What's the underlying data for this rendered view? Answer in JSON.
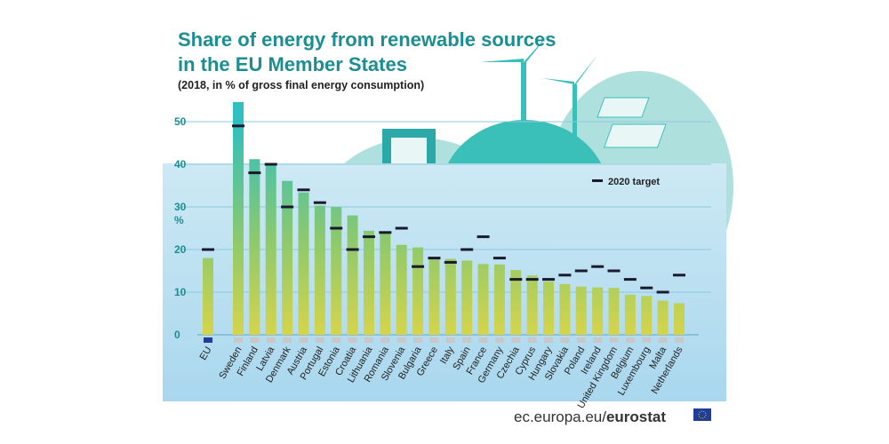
{
  "chart_data": {
    "type": "bar",
    "title": "Share of energy from renewable sources in the EU Member States",
    "title_lines": [
      "Share of energy from renewable sources",
      "in the EU Member States"
    ],
    "subtitle": "(2018, in % of gross final energy consumption)",
    "ylabel": "%",
    "ylim": [
      0,
      55
    ],
    "yticks": [
      0,
      10,
      20,
      30,
      40,
      50
    ],
    "grid": true,
    "legend": {
      "position": "top-right",
      "entries": [
        "2020 target"
      ]
    },
    "categories": [
      "EU",
      "Sweden",
      "Finland",
      "Latvia",
      "Denmark",
      "Austria",
      "Portugal",
      "Estonia",
      "Croatia",
      "Lithuania",
      "Romania",
      "Slovenia",
      "Bulgaria",
      "Greece",
      "Italy",
      "Spain",
      "France",
      "Germany",
      "Czechia",
      "Cyprus",
      "Hungary",
      "Slovakia",
      "Poland",
      "Ireland",
      "United Kingdom",
      "Belgium",
      "Luxembourg",
      "Malta",
      "Netherlands"
    ],
    "series": [
      {
        "name": "2018",
        "values": [
          18.0,
          54.6,
          41.2,
          40.3,
          36.1,
          33.4,
          30.3,
          30.0,
          28.0,
          24.4,
          23.9,
          21.1,
          20.5,
          18.0,
          17.8,
          17.4,
          16.6,
          16.5,
          15.2,
          13.9,
          12.5,
          11.9,
          11.3,
          11.1,
          11.0,
          9.4,
          9.1,
          8.0,
          7.4
        ]
      },
      {
        "name": "2020 target",
        "values": [
          20,
          49,
          38,
          40,
          30,
          34,
          31,
          25,
          20,
          23,
          24,
          25,
          16,
          18,
          17,
          20,
          23,
          18,
          13,
          13,
          13,
          14,
          15,
          16,
          15,
          13,
          11,
          10,
          14
        ]
      }
    ],
    "colors": {
      "bar_top": "#33bfbf",
      "bar_bottom": "#d6d44a",
      "target": "#1a1a2e",
      "accent": "#1b8e93"
    }
  },
  "footer": {
    "source_prefix": "ec.europa.eu/",
    "source_brand": "eurostat"
  }
}
